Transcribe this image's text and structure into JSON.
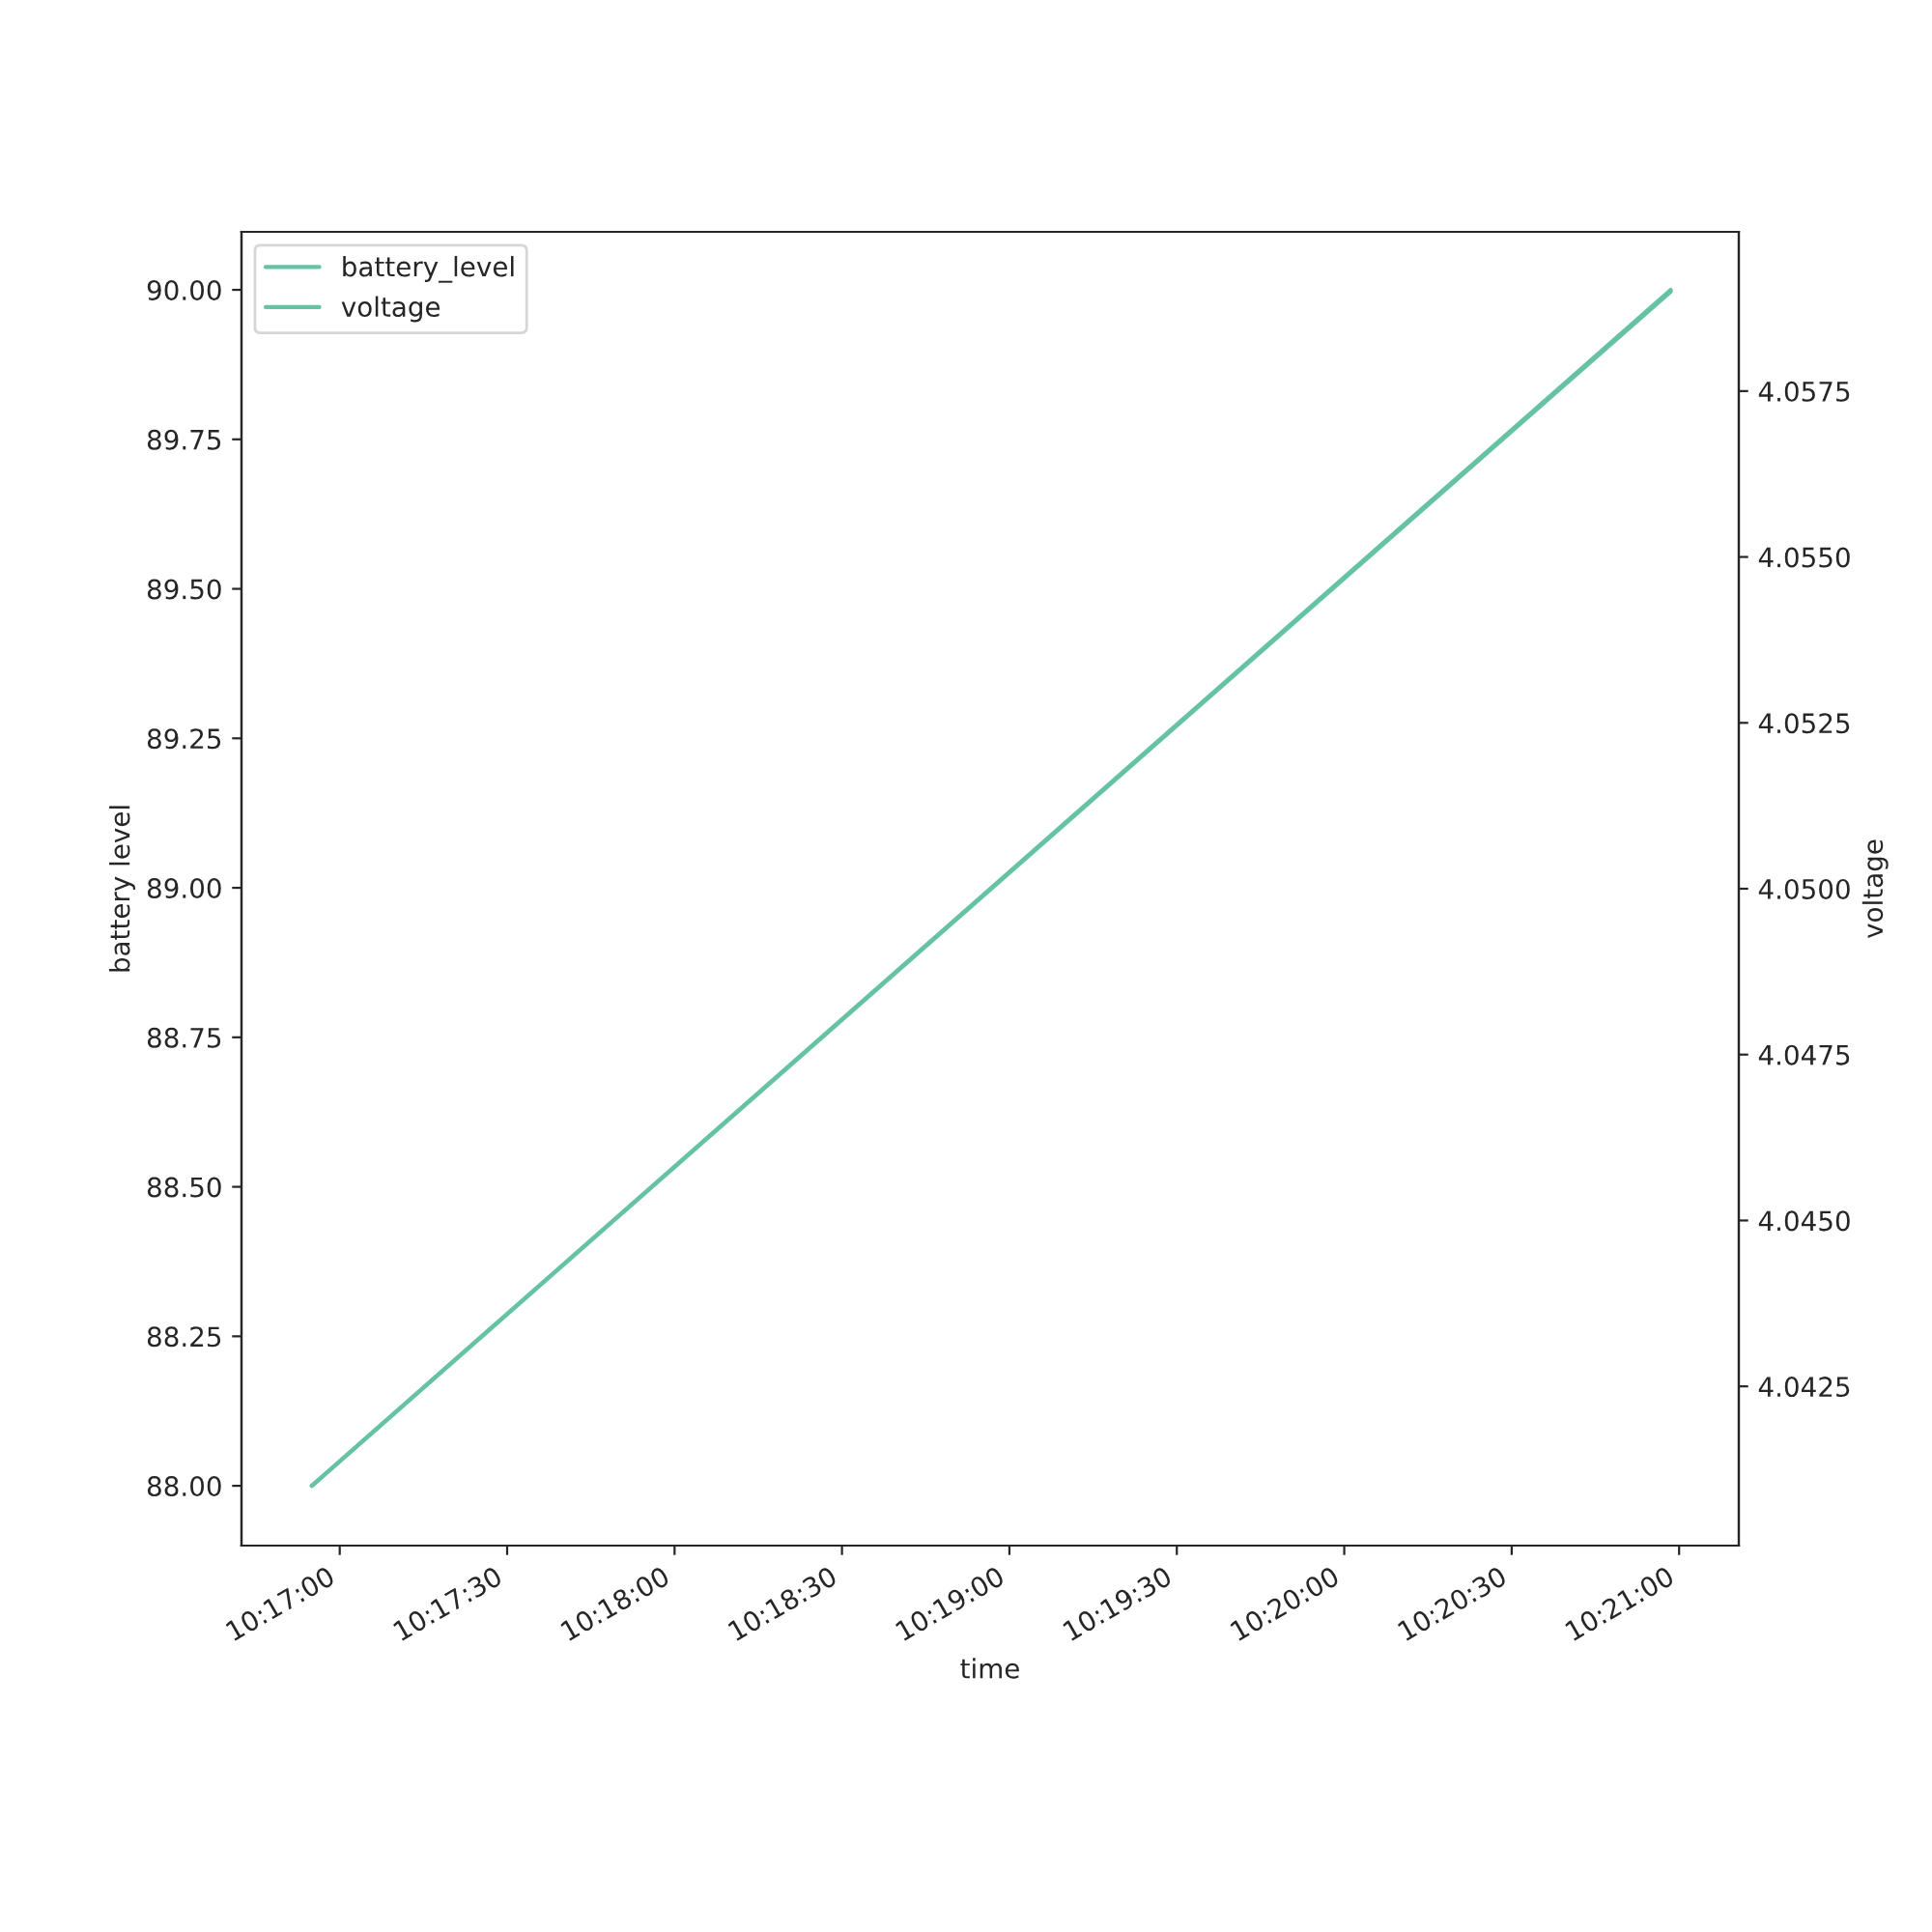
{
  "chart_data": {
    "type": "line",
    "xlabel": "time",
    "ylabel": "battery level",
    "y2label": "voltage",
    "x": [
      10.281944,
      10.349583
    ],
    "series": [
      {
        "name": "battery_level",
        "color": "#66c2a5",
        "values": [
          88.0,
          90.0
        ]
      },
      {
        "name": "voltage",
        "color": "#66c2a5",
        "values": [
          4.041,
          4.059
        ],
        "axis": "y2"
      }
    ],
    "xlim": [
      10.278444,
      10.352972
    ],
    "xticks": [
      {
        "value": 10.283333,
        "label": "10:17:00"
      },
      {
        "value": 10.291667,
        "label": "10:17:30"
      },
      {
        "value": 10.3,
        "label": "10:18:00"
      },
      {
        "value": 10.308333,
        "label": "10:18:30"
      },
      {
        "value": 10.316667,
        "label": "10:19:00"
      },
      {
        "value": 10.325,
        "label": "10:19:30"
      },
      {
        "value": 10.333333,
        "label": "10:20:00"
      },
      {
        "value": 10.341667,
        "label": "10:20:30"
      },
      {
        "value": 10.35,
        "label": "10:21:00"
      }
    ],
    "ylim": [
      87.9,
      90.097
    ],
    "yticks": [
      {
        "value": 88,
        "label": "88.00"
      },
      {
        "value": 88.25,
        "label": "88.25"
      },
      {
        "value": 88.5,
        "label": "88.50"
      },
      {
        "value": 88.75,
        "label": "88.75"
      },
      {
        "value": 89,
        "label": "89.00"
      },
      {
        "value": 89.25,
        "label": "89.25"
      },
      {
        "value": 89.5,
        "label": "89.50"
      },
      {
        "value": 89.75,
        "label": "89.75"
      },
      {
        "value": 90,
        "label": "90.00"
      }
    ],
    "y2lim": [
      4.0401,
      4.0599
    ],
    "y2ticks": [
      {
        "value": 4.0425,
        "label": "4.0425"
      },
      {
        "value": 4.045,
        "label": "4.0450"
      },
      {
        "value": 4.0475,
        "label": "4.0475"
      },
      {
        "value": 4.05,
        "label": "4.0500"
      },
      {
        "value": 4.0525,
        "label": "4.0525"
      },
      {
        "value": 4.055,
        "label": "4.0550"
      },
      {
        "value": 4.0575,
        "label": "4.0575"
      }
    ],
    "legend": "top left",
    "grid": false
  }
}
